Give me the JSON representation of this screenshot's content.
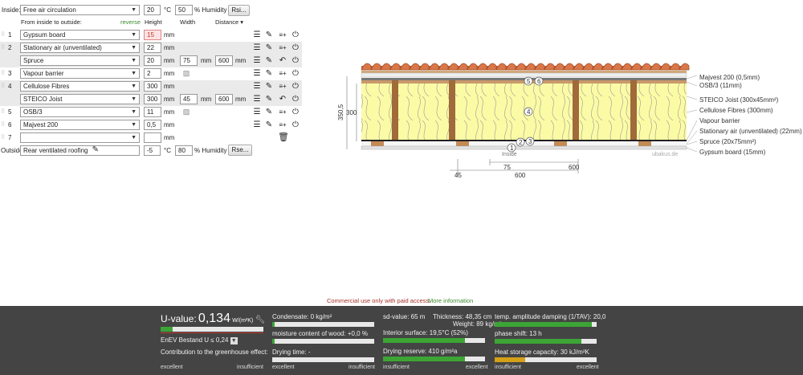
{
  "inside": {
    "label": "Inside:",
    "value": "Free air circulation",
    "temp": "20",
    "temp_unit": "°C",
    "humidity": "50",
    "humidity_unit": "% Humidity",
    "rsi_button": "Rsi..."
  },
  "headers": {
    "from_label": "From inside to outside:",
    "reverse": "reverse",
    "height": "Height",
    "width": "Width",
    "distance": "Distance ▾"
  },
  "layers": [
    {
      "idx": "1",
      "name": "Gypsum board",
      "height": "15",
      "unit": "mm"
    },
    {
      "idx": "2",
      "name": "Stationary air (unventilated)",
      "height": "22",
      "unit": "mm"
    },
    {
      "idx": "",
      "name": "Spruce",
      "height": "20",
      "unit": "mm",
      "width": "75",
      "width_unit": "mm",
      "distance": "600",
      "distance_unit": "mm"
    },
    {
      "idx": "3",
      "name": "Vapour barrier",
      "height": "2",
      "unit": "mm"
    },
    {
      "idx": "4",
      "name": "Cellulose Fibres",
      "height": "300",
      "unit": "mm"
    },
    {
      "idx": "",
      "name": "STEICO  Joist",
      "height": "300",
      "unit": "mm",
      "width": "45",
      "width_unit": "mm",
      "distance": "600",
      "distance_unit": "mm"
    },
    {
      "idx": "5",
      "name": "OSB/3",
      "height": "11",
      "unit": "mm"
    },
    {
      "idx": "6",
      "name": "Majvest 200",
      "height": "0,5",
      "unit": "mm"
    },
    {
      "idx": "7",
      "name": "",
      "height": "",
      "unit": "mm"
    }
  ],
  "outside": {
    "label": "Outside",
    "value": "Rear ventilated roofing",
    "temp": "-5",
    "temp_unit": "°C",
    "humidity": "80",
    "humidity_unit": "% Humidity",
    "rse_button": "Rse..."
  },
  "diagram": {
    "legend": [
      "Majvest 200 (0,5mm)",
      "OSB/3 (11mm)",
      "STEICO  Joist (300x45mm²)",
      "Cellulose Fibres (300mm)",
      "Vapour barrier",
      "Stationary air (unventilated) (22mm)",
      "Spruce (20x75mm²)",
      "Gypsum board (15mm)"
    ],
    "dim_left": "350,5",
    "dim_right": "300",
    "inside_label": "Inside",
    "watermark": "ubakus.de",
    "dim_bottom": [
      "75",
      "600",
      "45",
      "600"
    ],
    "markers": [
      "5",
      "6",
      "4",
      "2",
      "3",
      "1"
    ]
  },
  "notice": {
    "text": "Commercial use only with paid access.",
    "link": "More information"
  },
  "results": {
    "uvalue_label": "U-value:",
    "uvalue": "0,134",
    "uvalue_unit": "W/(m²K)",
    "standard": "EnEV Bestand U ≤ 0,24",
    "greenhouse": "Contribution to the greenhouse effect:",
    "condensate": "Condensate: 0 kg/m²",
    "moisture": "moisture content of wood: +0,0 %",
    "drying_time": "Drying time: -",
    "sd": "sd-value: 65 m",
    "thickness": "Thickness: 48,35 cm",
    "weight": "Weight: 89 kg/m²",
    "interior": "Interior surface: 19,5°C (52%)",
    "drying_reserve": "Drying reserve: 410 g/m²a",
    "damping": "temp. amplitude damping (1/TAV): 20,0",
    "phase": "phase shift: 13 h",
    "heat_storage": "Heat storage capacity: 30 kJ/m²K",
    "excellent": "excellent",
    "insufficient": "insufficient",
    "levels": {
      "u": 0.12,
      "cond": 0.02,
      "moist": 0.02,
      "drying": 0.0,
      "interior": 0.8,
      "reserve": 0.8,
      "damping": 0.95,
      "phase": 0.85,
      "heat": 0.3
    },
    "colors": {
      "good": "#3ca535",
      "bad": "#c0392b",
      "mid": "#d4a017"
    }
  }
}
